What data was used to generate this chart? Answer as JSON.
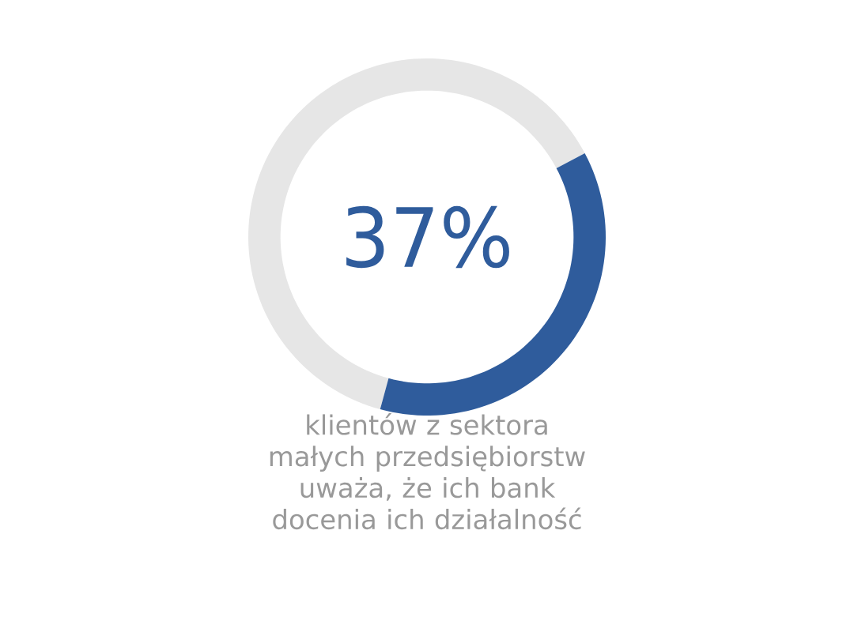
{
  "chart_data": {
    "type": "donut",
    "subtitle": "klientów z sektora małych przedsiębiorstw uważa, że ich bank docenia ich działalność",
    "categories": [
      null,
      null
    ],
    "values": [
      37,
      63
    ],
    "value_labels": [
      "37%",
      null
    ],
    "colors": [
      "#2f5c9c",
      "#e6e6e6"
    ]
  }
}
